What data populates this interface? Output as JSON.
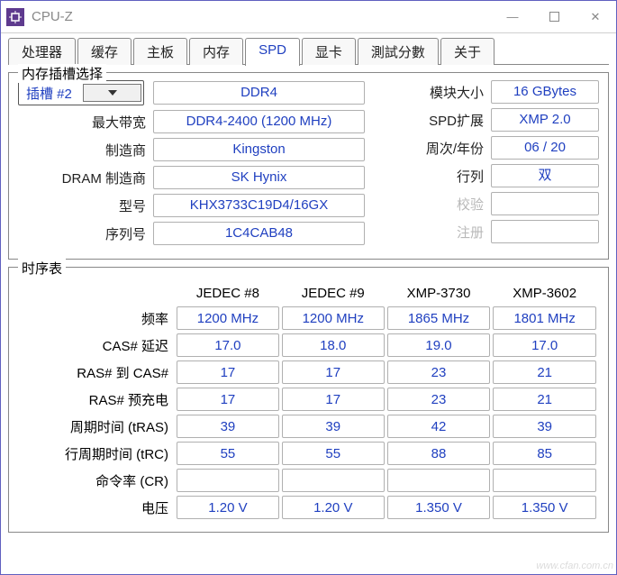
{
  "window": {
    "title": "CPU-Z"
  },
  "titlebar_btns": {
    "min": "—",
    "max": "",
    "close": "✕"
  },
  "tabs": [
    "处理器",
    "缓存",
    "主板",
    "内存",
    "SPD",
    "显卡",
    "測試分數",
    "关于"
  ],
  "active_tab_index": 4,
  "slot_group": {
    "legend": "内存插槽选择",
    "slot_label": "插槽 #2",
    "labels": {
      "max_bw": "最大带宽",
      "mfr": "制造商",
      "dram_mfr": "DRAM 制造商",
      "part": "型号",
      "serial": "序列号",
      "mod_size": "模块大小",
      "spd_ext": "SPD扩展",
      "week_year": "周次/年份",
      "ranks": "行列",
      "check": "校验",
      "reg": "注册"
    },
    "left": {
      "type": "DDR4",
      "max_bw": "DDR4-2400 (1200 MHz)",
      "mfr": "Kingston",
      "dram_mfr": "SK Hynix",
      "part": "KHX3733C19D4/16GX",
      "serial": "1C4CAB48"
    },
    "right": {
      "mod_size": "16 GBytes",
      "spd_ext": "XMP 2.0",
      "week_year": "06 / 20",
      "ranks": "双",
      "check": "",
      "reg": ""
    }
  },
  "timing": {
    "legend": "时序表",
    "columns": [
      "JEDEC #8",
      "JEDEC #9",
      "XMP-3730",
      "XMP-3602"
    ],
    "rows": [
      {
        "label": "频率",
        "values": [
          "1200 MHz",
          "1200 MHz",
          "1865 MHz",
          "1801 MHz"
        ]
      },
      {
        "label": "CAS# 延迟",
        "values": [
          "17.0",
          "18.0",
          "19.0",
          "17.0"
        ]
      },
      {
        "label": "RAS# 到 CAS#",
        "values": [
          "17",
          "17",
          "23",
          "21"
        ]
      },
      {
        "label": "RAS# 预充电",
        "values": [
          "17",
          "17",
          "23",
          "21"
        ]
      },
      {
        "label": "周期时间 (tRAS)",
        "values": [
          "39",
          "39",
          "42",
          "39"
        ]
      },
      {
        "label": "行周期时间 (tRC)",
        "values": [
          "55",
          "55",
          "88",
          "85"
        ]
      },
      {
        "label": "命令率 (CR)",
        "values": [
          "",
          "",
          "",
          ""
        ]
      },
      {
        "label": "电压",
        "values": [
          "1.20 V",
          "1.20 V",
          "1.350 V",
          "1.350 V"
        ]
      }
    ]
  },
  "watermark": "www.cfan.com.cn",
  "colors": {
    "accent": "#2040c0",
    "border": "#888888",
    "box_border": "#b0b0b0",
    "dim": "#b8b8b8"
  }
}
